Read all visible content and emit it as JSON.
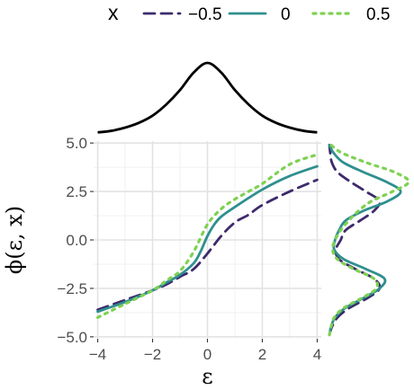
{
  "chart_data": [
    {
      "panel": "top-marginal",
      "type": "line",
      "description_shown": "density of ε",
      "x_domain": [
        -4,
        4
      ],
      "series": [
        {
          "name": "",
          "color": "#000000",
          "x": [
            -4,
            -3.5,
            -3,
            -2.5,
            -2,
            -1.5,
            -1,
            -0.5,
            0,
            0.5,
            1,
            1.5,
            2,
            2.5,
            3,
            3.5,
            4
          ],
          "y": [
            0.03,
            0.05,
            0.09,
            0.15,
            0.24,
            0.38,
            0.56,
            0.78,
            0.9,
            0.78,
            0.56,
            0.38,
            0.24,
            0.15,
            0.09,
            0.05,
            0.03
          ]
        }
      ]
    },
    {
      "panel": "main",
      "type": "line",
      "xlabel": "ε",
      "ylabel": "ϕ(ε, x)",
      "xlim": [
        -4.15,
        4.15
      ],
      "ylim": [
        -5.1,
        5.1
      ],
      "x_ticks": [
        -4,
        -2,
        0,
        2,
        4
      ],
      "x_tick_labels": [
        "−4",
        "−2",
        "0",
        "2",
        "4"
      ],
      "y_ticks": [
        -5,
        -2.5,
        0,
        2.5,
        5
      ],
      "y_tick_labels": [
        "−5.0",
        "−2.5",
        "0.0",
        "2.5",
        "5.0"
      ],
      "grid": true,
      "legend": {
        "title": "x",
        "position": "top",
        "entries": [
          "−0.5",
          "0",
          "0.5"
        ]
      },
      "series": [
        {
          "name": "−0.5",
          "color": "#3e2a6b",
          "dash": "dashed",
          "x": [
            -4,
            -3,
            -2,
            -1.5,
            -1,
            -0.5,
            0,
            0.5,
            1,
            1.5,
            2,
            3,
            4
          ],
          "y": [
            -3.6,
            -3.1,
            -2.6,
            -2.3,
            -1.9,
            -1.5,
            -0.7,
            0.2,
            0.9,
            1.3,
            1.8,
            2.5,
            3.1
          ]
        },
        {
          "name": "0",
          "color": "#2f8f8f",
          "dash": "solid",
          "x": [
            -4,
            -3,
            -2,
            -1.5,
            -1,
            -0.5,
            -0.25,
            0,
            0.25,
            0.5,
            1,
            2,
            3,
            4
          ],
          "y": [
            -3.7,
            -3.2,
            -2.6,
            -2.2,
            -1.8,
            -1.2,
            -0.6,
            0.2,
            0.8,
            1.2,
            1.7,
            2.6,
            3.3,
            3.8
          ]
        },
        {
          "name": "0.5",
          "color": "#7fd152",
          "dash": "dotted",
          "x": [
            -4,
            -3,
            -2,
            -1.5,
            -1,
            -0.5,
            0,
            0.5,
            1,
            1.5,
            2,
            3,
            4
          ],
          "y": [
            -4.0,
            -3.3,
            -2.6,
            -2.1,
            -1.6,
            -0.6,
            0.8,
            1.6,
            2.1,
            2.5,
            2.9,
            3.9,
            4.4
          ]
        }
      ]
    },
    {
      "panel": "right-marginal",
      "type": "line",
      "description_shown": "density of ϕ(ε, x) per x",
      "orientation": "vertical",
      "y_domain": [
        -5.1,
        5.1
      ],
      "series": [
        {
          "name": "−0.5",
          "color": "#3e2a6b",
          "dash": "dashed",
          "y": [
            -4.9,
            -4.5,
            -4.0,
            -3.5,
            -3.0,
            -2.5,
            -2.0,
            -1.5,
            -1.0,
            -0.5,
            0,
            0.5,
            1.0,
            1.5,
            2.0,
            2.5,
            3.0,
            3.5,
            4.0,
            4.5,
            4.9
          ],
          "density": [
            0.0,
            0.03,
            0.1,
            0.25,
            0.47,
            0.62,
            0.55,
            0.32,
            0.12,
            0.08,
            0.14,
            0.2,
            0.38,
            0.55,
            0.62,
            0.45,
            0.26,
            0.1,
            0.03,
            0.01,
            0.0
          ]
        },
        {
          "name": "0",
          "color": "#2f8f8f",
          "dash": "solid",
          "y": [
            -4.9,
            -4.5,
            -4.0,
            -3.5,
            -3.0,
            -2.5,
            -2.0,
            -1.5,
            -1.0,
            -0.5,
            0,
            0.5,
            1.0,
            1.5,
            2.0,
            2.5,
            3.0,
            3.5,
            4.0,
            4.5,
            4.9
          ],
          "density": [
            0.0,
            0.02,
            0.07,
            0.2,
            0.42,
            0.62,
            0.68,
            0.45,
            0.18,
            0.06,
            0.07,
            0.12,
            0.2,
            0.42,
            0.72,
            0.88,
            0.7,
            0.42,
            0.17,
            0.05,
            0.0
          ]
        },
        {
          "name": "0.5",
          "color": "#7fd152",
          "dash": "dotted",
          "y": [
            -4.9,
            -4.5,
            -4.0,
            -3.5,
            -3.0,
            -2.5,
            -2.0,
            -1.5,
            -1.0,
            -0.5,
            0,
            0.5,
            1.0,
            1.5,
            2.0,
            2.5,
            3.0,
            3.5,
            4.0,
            4.5,
            4.9
          ],
          "density": [
            0.0,
            0.02,
            0.06,
            0.18,
            0.4,
            0.58,
            0.55,
            0.3,
            0.1,
            0.04,
            0.07,
            0.14,
            0.24,
            0.36,
            0.52,
            0.78,
            0.98,
            0.8,
            0.45,
            0.15,
            0.02
          ]
        }
      ]
    }
  ]
}
